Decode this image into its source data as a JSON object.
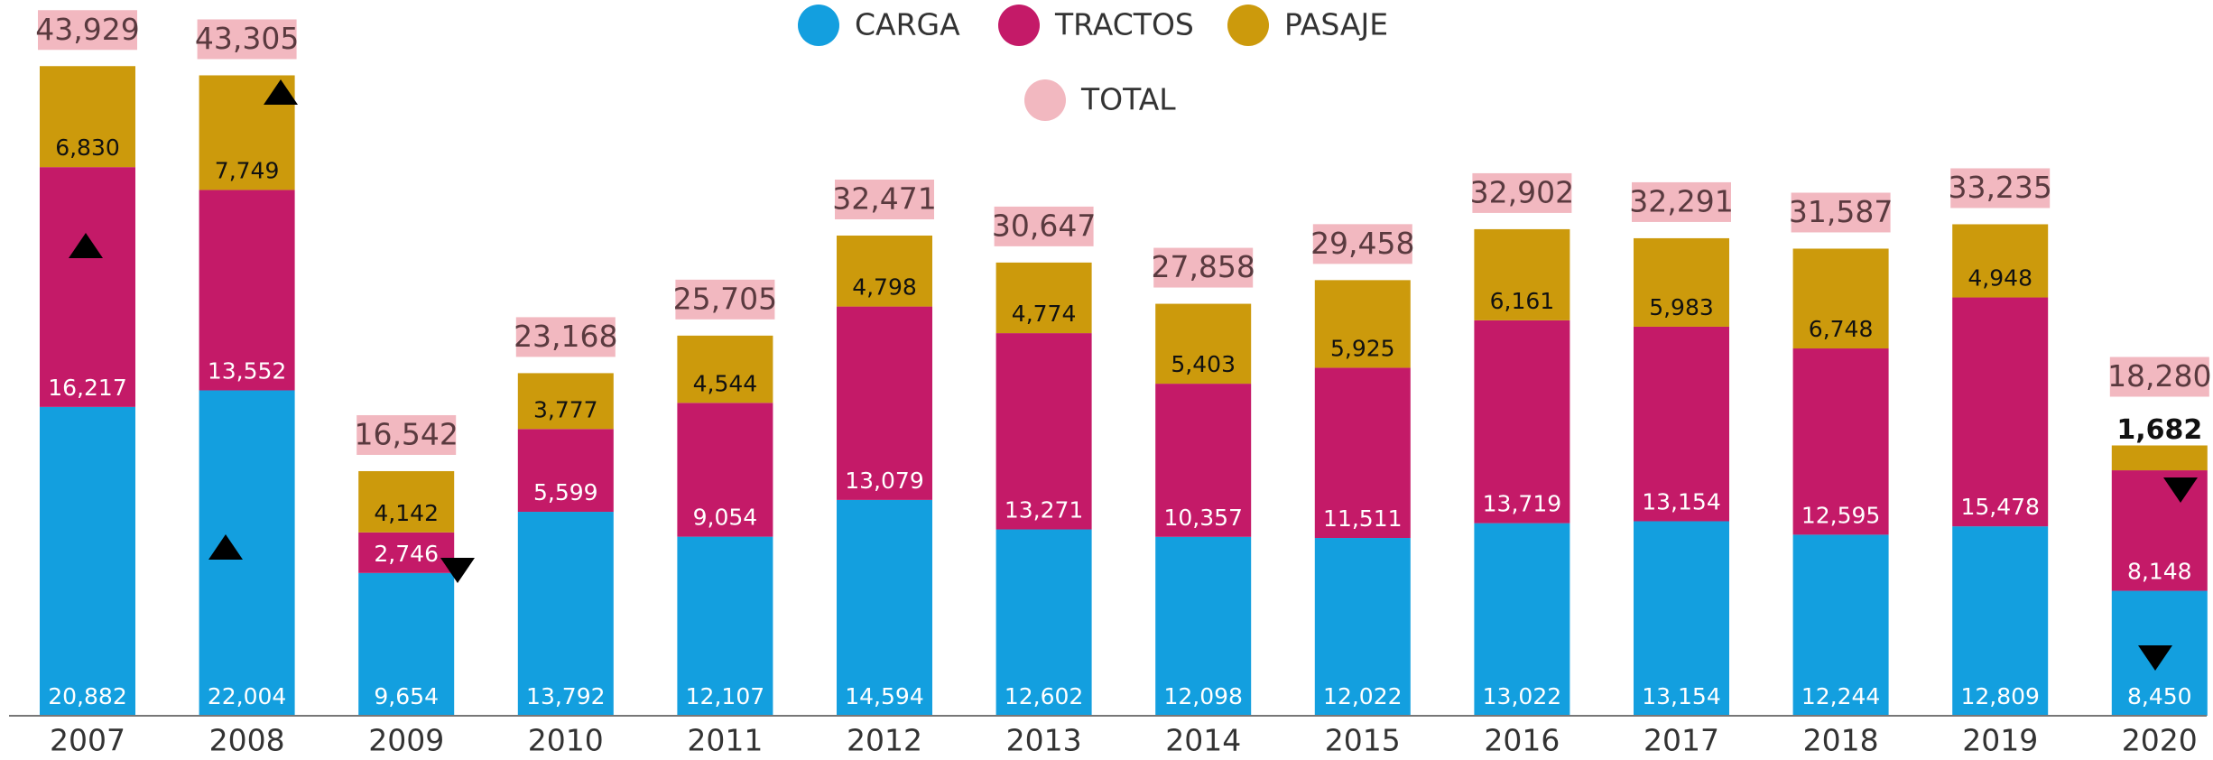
{
  "chart_data": {
    "type": "stacked_bar",
    "categories": [
      "2007",
      "2008",
      "2009",
      "2010",
      "2011",
      "2012",
      "2013",
      "2014",
      "2015",
      "2016",
      "2017",
      "2018",
      "2019",
      "2020"
    ],
    "series": [
      {
        "name": "CARGA",
        "color": "#139fdf",
        "label_color": "#ffffff",
        "values": [
          20882,
          22004,
          9654,
          13792,
          12107,
          14594,
          12602,
          12098,
          12022,
          13022,
          13154,
          12244,
          12809,
          8450
        ],
        "value_labels": [
          "20,882",
          "22,004",
          "9,654",
          "13,792",
          "12,107",
          "14,594",
          "12,602",
          "12,098",
          "12,022",
          "13,022",
          "13,154",
          "12,244",
          "12,809",
          "8,450"
        ]
      },
      {
        "name": "TRACTOS",
        "color": "#c41a68",
        "label_color": "#ffffff",
        "values": [
          16217,
          13552,
          2746,
          5599,
          9054,
          13079,
          13271,
          10357,
          11511,
          13719,
          13154,
          12595,
          15478,
          8148
        ],
        "value_labels": [
          "16,217",
          "13,552",
          "2,746",
          "5,599",
          "9,054",
          "13,079",
          "13,271",
          "10,357",
          "11,511",
          "13,719",
          "13,154",
          "12,595",
          "15,478",
          "8,148"
        ]
      },
      {
        "name": "PASAJE",
        "color": "#cc9a0c",
        "label_color": "#111111",
        "values": [
          6830,
          7749,
          4142,
          3777,
          4544,
          4798,
          4774,
          5403,
          5925,
          6161,
          5983,
          6748,
          4948,
          1682
        ],
        "value_labels": [
          "6,830",
          "7,749",
          "4,142",
          "3,777",
          "4,544",
          "4,798",
          "4,774",
          "5,403",
          "5,925",
          "6,161",
          "5,983",
          "6,748",
          "4,948",
          "1,682"
        ]
      }
    ],
    "totals": {
      "name": "TOTAL",
      "color": "#f2b8c0",
      "values": [
        43929,
        43305,
        16542,
        23168,
        25705,
        32471,
        30647,
        27858,
        29458,
        32902,
        32291,
        31587,
        33235,
        18280
      ],
      "value_labels": [
        "43,929",
        "43,305",
        "16,542",
        "23,168",
        "25,705",
        "32,471",
        "30,647",
        "27,858",
        "29,458",
        "32,902",
        "32,291",
        "31,587",
        "33,235",
        "18,280"
      ]
    },
    "ylim": [
      0,
      48400
    ]
  }
}
